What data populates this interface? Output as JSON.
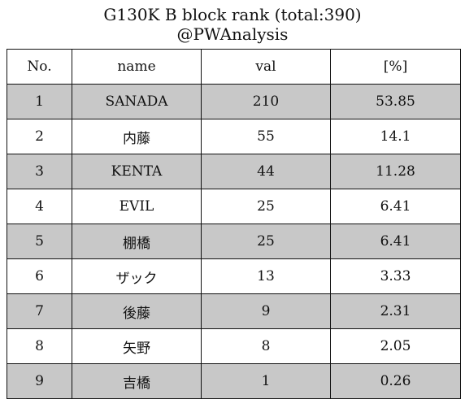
{
  "title": {
    "line1": "G130K B block rank (total:390)",
    "line2": "@PWAnalysis"
  },
  "chart_data": {
    "type": "table",
    "title": "G130K B block rank (total:390)",
    "subtitle": "@PWAnalysis",
    "columns": [
      "No.",
      "name",
      "val",
      "[%]"
    ],
    "rows": [
      {
        "no": "1",
        "name": "SANADA",
        "val": "210",
        "pct": "53.85",
        "shaded": true
      },
      {
        "no": "2",
        "name": "内藤",
        "val": "55",
        "pct": "14.1",
        "shaded": false
      },
      {
        "no": "3",
        "name": "KENTA",
        "val": "44",
        "pct": "11.28",
        "shaded": true
      },
      {
        "no": "4",
        "name": "EVIL",
        "val": "25",
        "pct": "6.41",
        "shaded": false
      },
      {
        "no": "5",
        "name": "棚橋",
        "val": "25",
        "pct": "6.41",
        "shaded": true
      },
      {
        "no": "6",
        "name": "ザック",
        "val": "13",
        "pct": "3.33",
        "shaded": false
      },
      {
        "no": "7",
        "name": "後藤",
        "val": "9",
        "pct": "2.31",
        "shaded": true
      },
      {
        "no": "8",
        "name": "矢野",
        "val": "8",
        "pct": "2.05",
        "shaded": false
      },
      {
        "no": "9",
        "name": "吉橋",
        "val": "1",
        "pct": "0.26",
        "shaded": true
      }
    ]
  },
  "colors": {
    "shaded_row": "#c8c8c8",
    "plain_row": "#ffffff",
    "border": "#111111"
  }
}
